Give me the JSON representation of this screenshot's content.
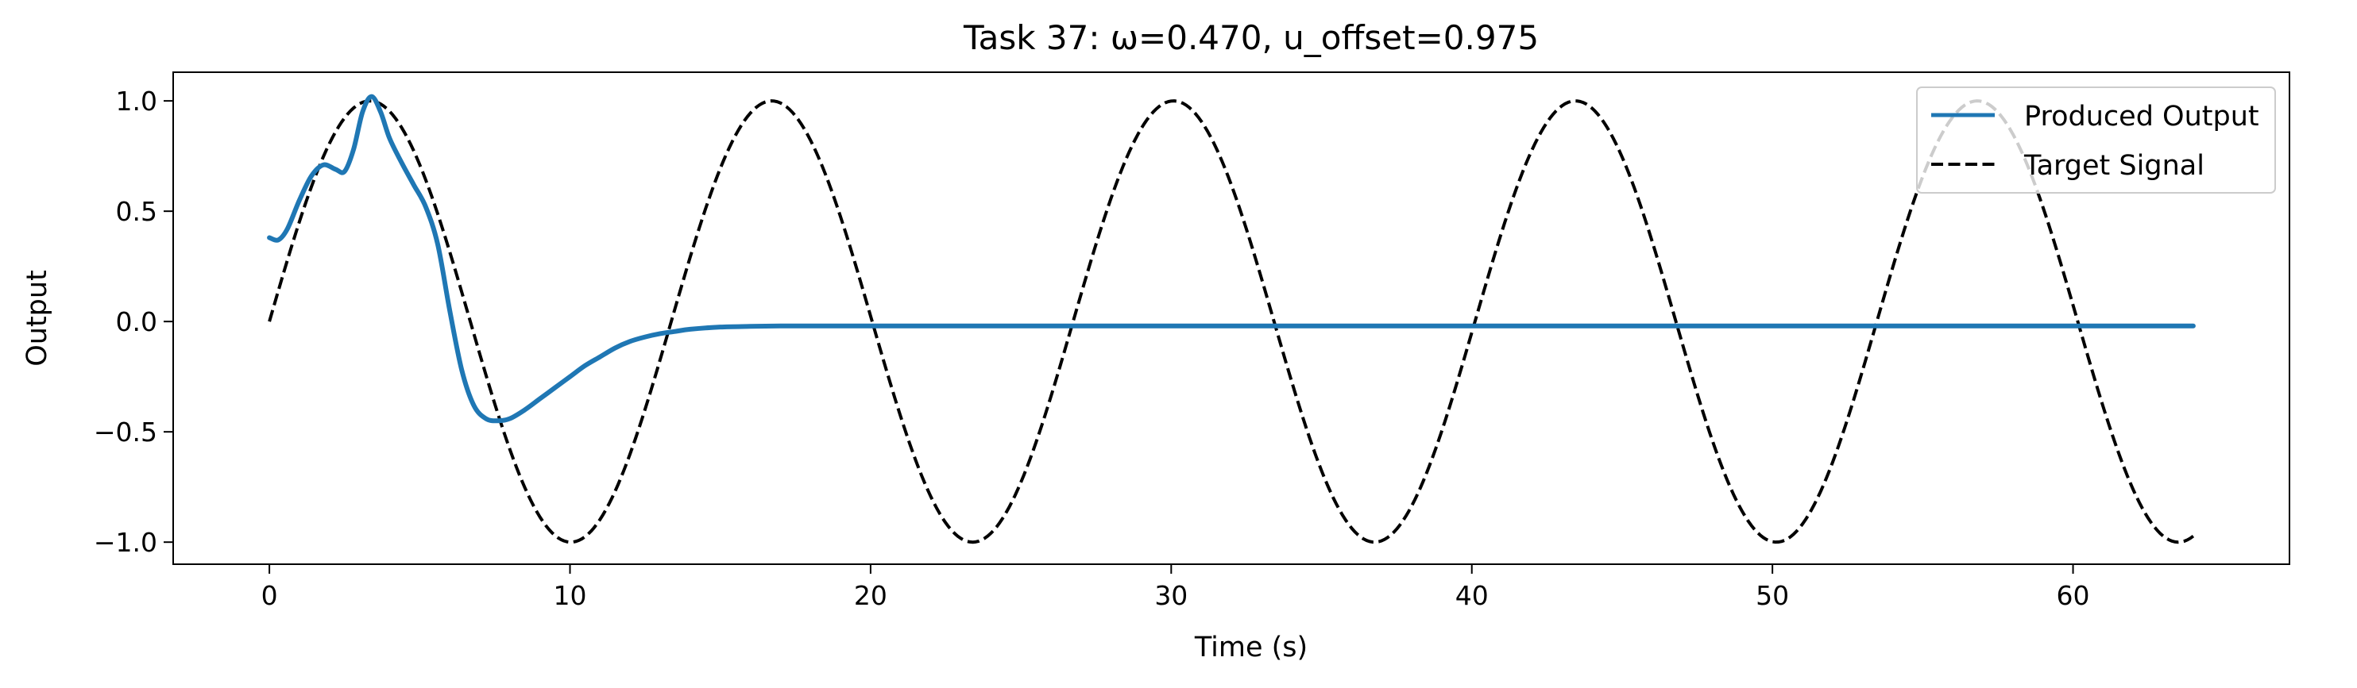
{
  "chart_data": {
    "type": "line",
    "title": "Task 37: ω=0.470, u_offset=0.975",
    "xlabel": "Time (s)",
    "ylabel": "Output",
    "xlim": [
      -3.2,
      67.2
    ],
    "ylim": [
      -1.1,
      1.13
    ],
    "xticks": [
      0,
      10,
      20,
      30,
      40,
      50,
      60
    ],
    "yticks": [
      -1.0,
      -0.5,
      0.0,
      0.5,
      1.0
    ],
    "xtick_labels": [
      "0",
      "10",
      "20",
      "30",
      "40",
      "50",
      "60"
    ],
    "ytick_labels": [
      "−1.0",
      "−0.5",
      "0.0",
      "0.5",
      "1.0"
    ],
    "grid": false,
    "legend_position": "top-right",
    "series": [
      {
        "name": "Produced Output",
        "color": "#1f77b4",
        "style": "solid",
        "x": [
          0,
          0.3,
          0.6,
          1.0,
          1.4,
          1.8,
          2.2,
          2.5,
          2.8,
          3.1,
          3.4,
          3.7,
          4.0,
          4.4,
          4.8,
          5.2,
          5.6,
          6.0,
          6.4,
          6.8,
          7.2,
          7.6,
          8.0,
          8.5,
          9.0,
          9.5,
          10.0,
          10.5,
          11.0,
          11.5,
          12.0,
          12.5,
          13.0,
          13.5,
          14.0,
          15.0,
          16.0,
          17.0,
          18.0,
          20.0,
          25.0,
          30.0,
          40.0,
          50.0,
          60.0,
          64.0
        ],
        "y": [
          0.38,
          0.37,
          0.42,
          0.55,
          0.66,
          0.71,
          0.69,
          0.68,
          0.78,
          0.95,
          1.02,
          0.95,
          0.83,
          0.72,
          0.62,
          0.52,
          0.35,
          0.05,
          -0.22,
          -0.38,
          -0.44,
          -0.45,
          -0.44,
          -0.4,
          -0.35,
          -0.3,
          -0.25,
          -0.2,
          -0.16,
          -0.12,
          -0.09,
          -0.07,
          -0.055,
          -0.045,
          -0.035,
          -0.025,
          -0.022,
          -0.02,
          -0.02,
          -0.02,
          -0.02,
          -0.02,
          -0.02,
          -0.02,
          -0.02,
          -0.02
        ]
      },
      {
        "name": "Target Signal",
        "color": "#000000",
        "style": "dashed",
        "function": "sin(0.47*t)",
        "t_start": 0,
        "t_end": 64
      }
    ]
  }
}
